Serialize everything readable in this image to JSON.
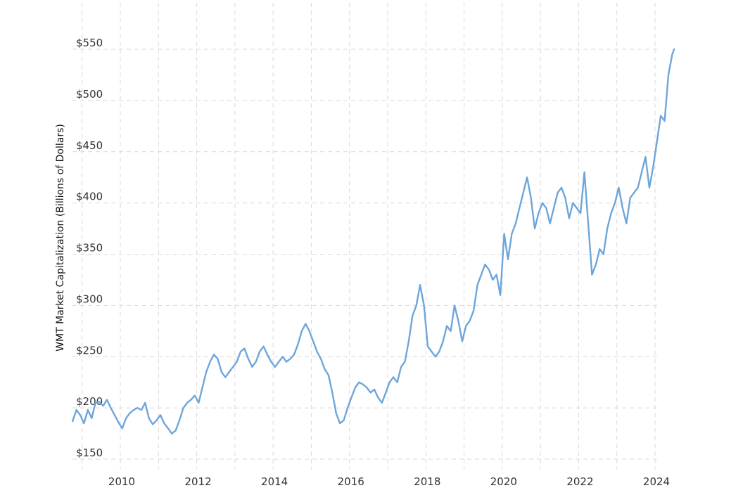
{
  "chart_data": {
    "type": "line",
    "title": "",
    "xlabel": "",
    "ylabel": "WMT Market Capitalization (Billions of Dollars)",
    "ylim": [
      140,
      570
    ],
    "xlim": [
      2008.7,
      2024.6
    ],
    "grid": true,
    "y_ticks": [
      150,
      200,
      250,
      300,
      350,
      400,
      450,
      500,
      550
    ],
    "y_tick_labels": [
      "$150",
      "$200",
      "$250",
      "$300",
      "$350",
      "$400",
      "$450",
      "$500",
      "$550"
    ],
    "x_ticks": [
      2010,
      2012,
      2014,
      2016,
      2018,
      2020,
      2022,
      2024
    ],
    "x_tick_labels": [
      "2010",
      "2012",
      "2014",
      "2016",
      "2018",
      "2020",
      "2022",
      "2024"
    ],
    "line_color": "#6ea6da",
    "series": [
      {
        "x": [
          2008.75,
          2008.85,
          2008.95,
          2009.05,
          2009.15,
          2009.25,
          2009.35,
          2009.45,
          2009.55,
          2009.65,
          2009.75,
          2009.85,
          2009.95,
          2010.05,
          2010.15,
          2010.25,
          2010.35,
          2010.45,
          2010.55,
          2010.65,
          2010.75,
          2010.85,
          2010.95,
          2011.05,
          2011.15,
          2011.25,
          2011.35,
          2011.45,
          2011.55,
          2011.65,
          2011.75,
          2011.85,
          2011.95,
          2012.05,
          2012.15,
          2012.25,
          2012.35,
          2012.45,
          2012.55,
          2012.65,
          2012.75,
          2012.85,
          2012.95,
          2013.05,
          2013.15,
          2013.25,
          2013.35,
          2013.45,
          2013.55,
          2013.65,
          2013.75,
          2013.85,
          2013.95,
          2014.05,
          2014.15,
          2014.25,
          2014.35,
          2014.45,
          2014.55,
          2014.65,
          2014.75,
          2014.85,
          2014.95,
          2015.05,
          2015.15,
          2015.25,
          2015.35,
          2015.45,
          2015.55,
          2015.65,
          2015.75,
          2015.85,
          2015.95,
          2016.05,
          2016.15,
          2016.25,
          2016.35,
          2016.45,
          2016.55,
          2016.65,
          2016.75,
          2016.85,
          2016.95,
          2017.05,
          2017.15,
          2017.25,
          2017.35,
          2017.45,
          2017.55,
          2017.65,
          2017.75,
          2017.85,
          2017.95,
          2018.05,
          2018.15,
          2018.25,
          2018.35,
          2018.45,
          2018.55,
          2018.65,
          2018.75,
          2018.85,
          2018.95,
          2019.05,
          2019.15,
          2019.25,
          2019.35,
          2019.45,
          2019.55,
          2019.65,
          2019.75,
          2019.85,
          2019.95,
          2020.05,
          2020.15,
          2020.25,
          2020.35,
          2020.45,
          2020.55,
          2020.65,
          2020.75,
          2020.85,
          2020.95,
          2021.05,
          2021.15,
          2021.25,
          2021.35,
          2021.45,
          2021.55,
          2021.65,
          2021.75,
          2021.85,
          2021.95,
          2022.05,
          2022.15,
          2022.25,
          2022.35,
          2022.45,
          2022.55,
          2022.65,
          2022.75,
          2022.85,
          2022.95,
          2023.05,
          2023.15,
          2023.25,
          2023.35,
          2023.45,
          2023.55,
          2023.65,
          2023.75,
          2023.85,
          2023.95,
          2024.05,
          2024.15,
          2024.25,
          2024.35,
          2024.45,
          2024.5
        ],
        "values": [
          187,
          198,
          193,
          185,
          198,
          190,
          205,
          206,
          202,
          208,
          200,
          193,
          186,
          180,
          190,
          195,
          198,
          200,
          198,
          205,
          190,
          184,
          188,
          193,
          185,
          180,
          175,
          178,
          188,
          200,
          205,
          208,
          212,
          205,
          220,
          235,
          245,
          252,
          248,
          235,
          230,
          235,
          240,
          245,
          255,
          258,
          248,
          240,
          245,
          255,
          260,
          252,
          245,
          240,
          245,
          250,
          245,
          248,
          252,
          262,
          275,
          282,
          275,
          265,
          255,
          248,
          238,
          232,
          215,
          195,
          185,
          188,
          200,
          210,
          220,
          225,
          223,
          220,
          215,
          218,
          210,
          205,
          215,
          225,
          230,
          225,
          240,
          245,
          265,
          290,
          300,
          320,
          300,
          260,
          255,
          250,
          255,
          265,
          280,
          275,
          300,
          285,
          265,
          280,
          285,
          295,
          320,
          330,
          340,
          335,
          325,
          330,
          310,
          370,
          345,
          370,
          380,
          395,
          410,
          425,
          405,
          375,
          390,
          400,
          395,
          380,
          395,
          410,
          415,
          405,
          385,
          400,
          395,
          390,
          430,
          380,
          330,
          340,
          355,
          350,
          375,
          390,
          400,
          415,
          395,
          380,
          405,
          410,
          415,
          430,
          445,
          415,
          435,
          460,
          485,
          480,
          525,
          545,
          550
        ]
      }
    ]
  }
}
